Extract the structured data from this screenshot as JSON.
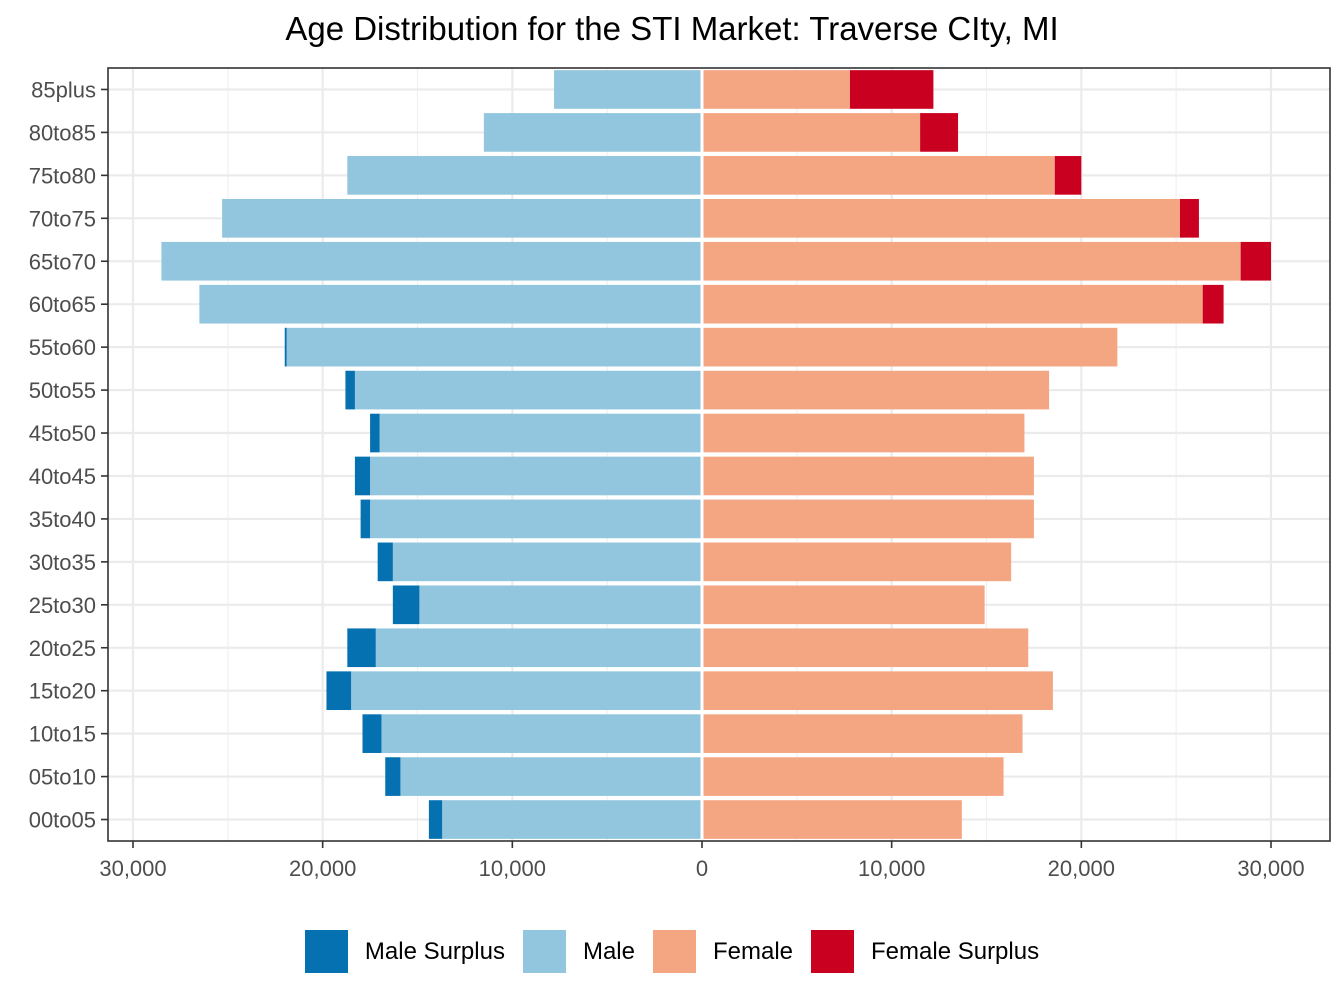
{
  "chart_data": {
    "type": "bar",
    "orientation": "horizontal",
    "title": "Age Distribution for the STI Market: Traverse CIty, MI",
    "xlabel": "",
    "ylabel": "",
    "xlim": [
      -30000,
      30000
    ],
    "x_ticks": [
      -30000,
      -20000,
      -10000,
      0,
      10000,
      20000,
      30000
    ],
    "x_tick_labels": [
      "30,000",
      "20,000",
      "10,000",
      "0",
      "10,000",
      "20,000",
      "30,000"
    ],
    "grid": true,
    "legend_position": "bottom",
    "categories": [
      "00to05",
      "05to10",
      "10to15",
      "15to20",
      "20to25",
      "25to30",
      "30to35",
      "35to40",
      "40to45",
      "45to50",
      "50to55",
      "55to60",
      "60to65",
      "65to70",
      "70to75",
      "75to80",
      "80to85",
      "85plus"
    ],
    "series": [
      {
        "name": "Male Surplus",
        "color": "#0571b0",
        "side": "left",
        "values": [
          700,
          800,
          1000,
          1300,
          1500,
          1400,
          800,
          500,
          800,
          500,
          500,
          100,
          0,
          0,
          0,
          0,
          0,
          0
        ]
      },
      {
        "name": "Male",
        "color": "#92c5de",
        "side": "left",
        "values": [
          13700,
          15900,
          16900,
          18500,
          17200,
          14900,
          16300,
          17500,
          17500,
          17000,
          18300,
          21900,
          26500,
          28500,
          25300,
          18700,
          11500,
          7800
        ]
      },
      {
        "name": "Female",
        "color": "#f4a582",
        "side": "right",
        "values": [
          13700,
          15900,
          16900,
          18500,
          17200,
          14900,
          16300,
          17500,
          17500,
          17000,
          18300,
          21900,
          26400,
          28400,
          25200,
          18600,
          11500,
          7800
        ]
      },
      {
        "name": "Female Surplus",
        "color": "#ca0020",
        "side": "right",
        "values": [
          0,
          0,
          0,
          0,
          0,
          0,
          0,
          0,
          0,
          0,
          0,
          0,
          1100,
          1600,
          1000,
          1400,
          2000,
          4400
        ]
      }
    ]
  }
}
